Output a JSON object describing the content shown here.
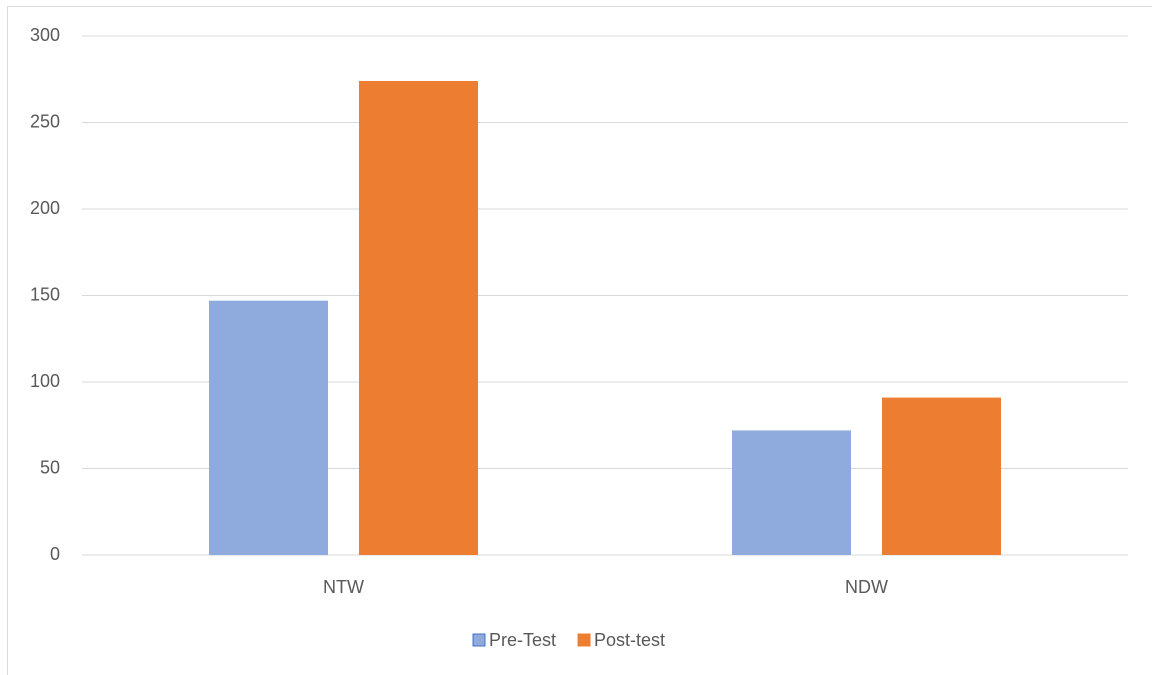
{
  "chart_data": {
    "type": "bar",
    "categories": [
      "NTW",
      "NDW"
    ],
    "series": [
      {
        "name": "Pre-Test",
        "color": "#8faadc",
        "values": [
          147,
          72
        ]
      },
      {
        "name": "Post-test",
        "color": "#ed7d31",
        "values": [
          274,
          91
        ]
      }
    ],
    "ylim": [
      0,
      300
    ],
    "yticks": [
      0,
      50,
      100,
      150,
      200,
      250,
      300
    ],
    "grid": true,
    "legend": "bottom"
  }
}
